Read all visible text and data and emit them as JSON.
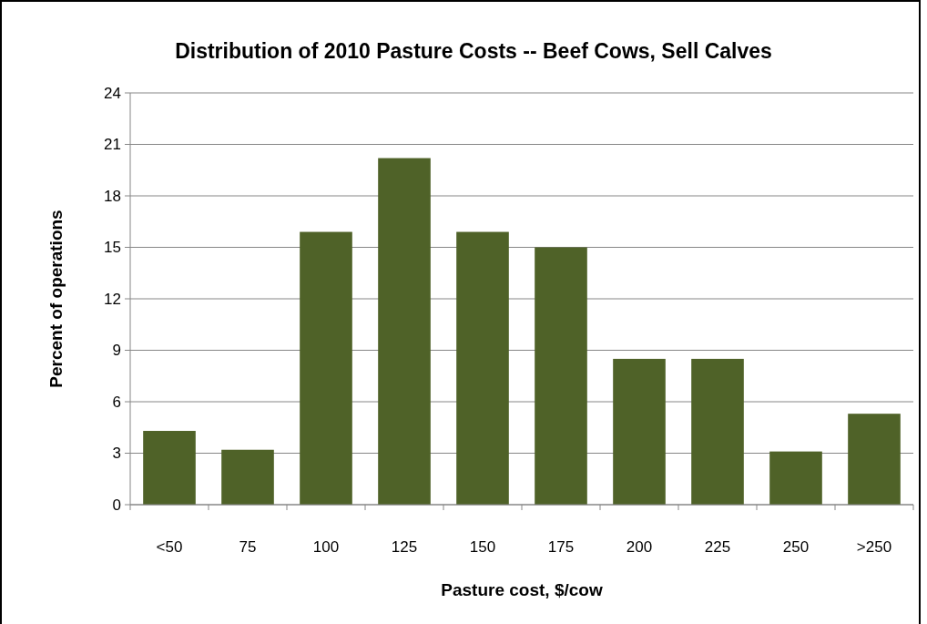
{
  "chart_data": {
    "type": "bar",
    "title": "Distribution of 2010 Pasture Costs -- Beef Cows, Sell Calves",
    "xlabel": "Pasture cost, $/cow",
    "ylabel": "Percent of operations",
    "categories": [
      "<50",
      "75",
      "100",
      "125",
      "150",
      "175",
      "200",
      "225",
      "250",
      ">250"
    ],
    "values": [
      4.3,
      3.2,
      15.9,
      20.2,
      15.9,
      15.0,
      8.5,
      8.5,
      3.1,
      5.3
    ],
    "color": "#4f6228",
    "ylim": [
      0,
      24
    ],
    "yticks": [
      0,
      3,
      6,
      9,
      12,
      15,
      18,
      21,
      24
    ],
    "grid": "y"
  }
}
